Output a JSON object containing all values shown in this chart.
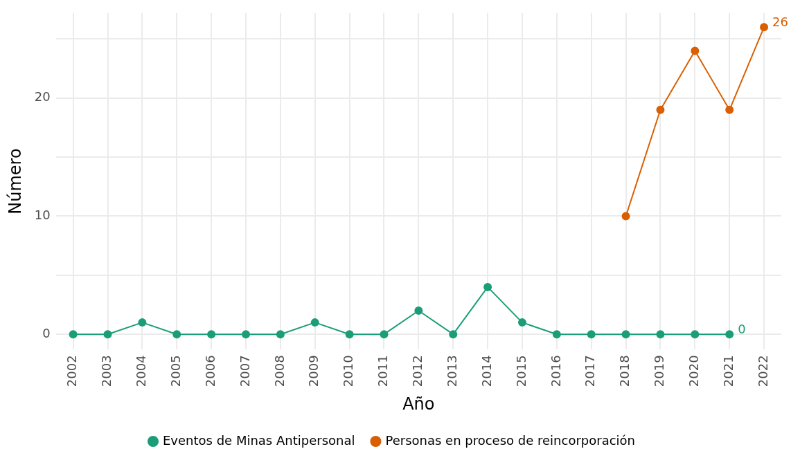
{
  "chart_data": {
    "type": "line",
    "xlabel": "Año",
    "ylabel": "Número",
    "categories": [
      "2002",
      "2003",
      "2004",
      "2005",
      "2006",
      "2007",
      "2008",
      "2009",
      "2010",
      "2011",
      "2012",
      "2013",
      "2014",
      "2015",
      "2016",
      "2017",
      "2018",
      "2019",
      "2020",
      "2021",
      "2022"
    ],
    "series": [
      {
        "name": "Eventos de Minas Antipersonal",
        "color": "#1b9e77",
        "values": [
          0,
          0,
          1,
          0,
          0,
          0,
          0,
          1,
          0,
          0,
          2,
          0,
          4,
          1,
          0,
          0,
          0,
          0,
          0,
          0,
          null
        ],
        "value_labels": [
          null,
          null,
          null,
          null,
          null,
          null,
          null,
          null,
          null,
          null,
          null,
          null,
          null,
          null,
          null,
          null,
          null,
          null,
          null,
          "0",
          null
        ]
      },
      {
        "name": "Personas en proceso de reincorporación",
        "color": "#d95f02",
        "values": [
          null,
          null,
          null,
          null,
          null,
          null,
          null,
          null,
          null,
          null,
          null,
          null,
          null,
          null,
          null,
          null,
          10,
          19,
          24,
          19,
          26
        ],
        "value_labels": [
          null,
          null,
          null,
          null,
          null,
          null,
          null,
          null,
          null,
          null,
          null,
          null,
          null,
          null,
          null,
          null,
          null,
          null,
          null,
          null,
          "26"
        ]
      }
    ],
    "ylim": [
      -1.3,
      27.2
    ],
    "yticks": [
      0,
      {
        "value": 5,
        "label": null
      },
      10,
      {
        "value": 15,
        "label": null
      },
      20,
      {
        "value": 25,
        "label": null
      }
    ],
    "grid": true,
    "legend": "bottom",
    "marker": "circle",
    "line_style": "solid"
  }
}
